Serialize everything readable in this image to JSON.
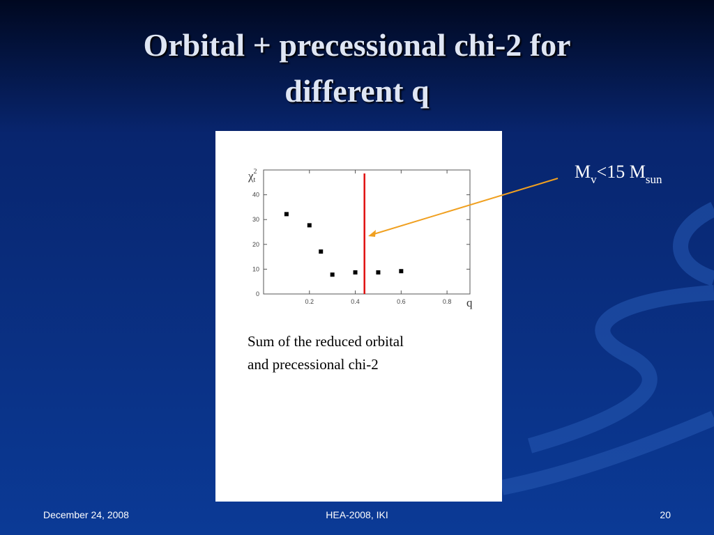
{
  "slide": {
    "title_lines": [
      "Orbital + precessional chi-2 for",
      "different q"
    ],
    "annotation": {
      "base": "M",
      "sub": "v",
      "mid": "<15 M",
      "sub2": "sun"
    },
    "caption_lines": [
      "Sum of the reduced orbital",
      "and precessional chi-2"
    ],
    "footer": {
      "date": "December 24, 2008",
      "center": "HEA-2008, IKI",
      "page": "20"
    }
  },
  "chart_data": {
    "type": "scatter",
    "xlabel": "q",
    "ylabel": {
      "symbol": "χ",
      "sub": "t",
      "sup": "2"
    },
    "x": [
      0.1,
      0.2,
      0.25,
      0.3,
      0.4,
      0.5,
      0.6
    ],
    "values": [
      32.2,
      27.7,
      17.1,
      7.8,
      8.7,
      8.7,
      9.2
    ],
    "color": "#000000",
    "vline": 0.44,
    "vline_color": "#e01010",
    "xlim": [
      0,
      0.9
    ],
    "xticks": [
      0.2,
      0.4,
      0.6,
      0.8
    ],
    "ylim": [
      0,
      50
    ],
    "yticks": [
      0,
      10,
      20,
      30,
      40
    ]
  }
}
